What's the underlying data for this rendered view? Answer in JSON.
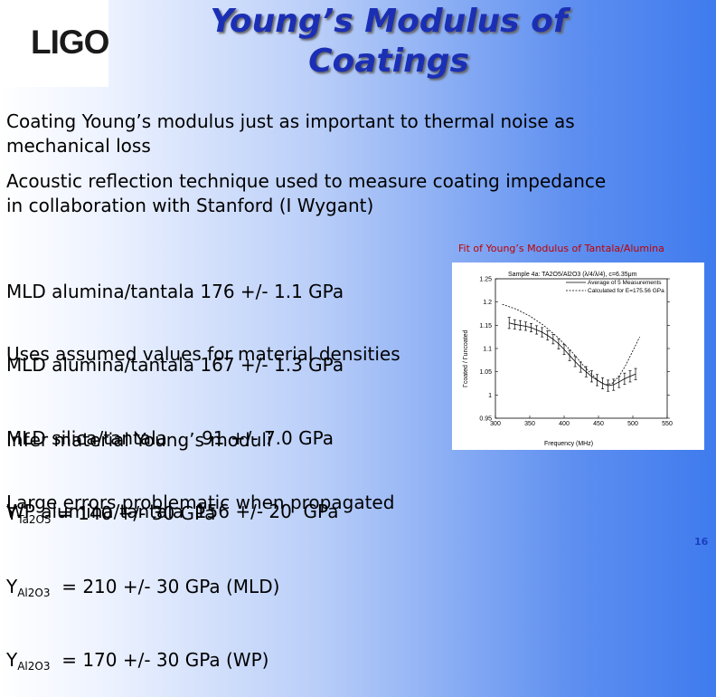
{
  "logo": {
    "text": "LIGO"
  },
  "title": {
    "line1": "Young’s Modulus of",
    "line2": "Coatings"
  },
  "bullets": {
    "b1": "Coating Young’s modulus just as important to thermal noise as\nmechanical loss",
    "b2": "Acoustic reflection technique used to measure coating impedance\nin collaboration with Stanford (I Wygant)"
  },
  "measurements": [
    "MLD alumina/tantala 176 +/- 1.1 GPa",
    "MLD alumina/tantala 167 +/- 1.3 GPa",
    "MLD silica/tantala      91 +/- 7.0 GPa",
    "WP alumina/tantala  156 +/- 20  GPa"
  ],
  "assumed": "Uses assumed values for material densities",
  "infer": {
    "heading": "Infer material Young’s moduli",
    "rows": [
      {
        "sym": "Y",
        "sub": "Ta2O5",
        "val": " = 140 +/- 30 GPa"
      },
      {
        "sym": "Y",
        "sub": "Al2O3",
        "val": "  = 210 +/- 30 GPa (MLD)"
      },
      {
        "sym": "Y",
        "sub": "Al2O3",
        "val": "  = 170 +/- 30 GPa (WP)"
      }
    ]
  },
  "large_errors": "Large errors problematic when propagated",
  "figure": {
    "caption": "Fit of Young’s Modulus of Tantala/Alumina",
    "plot_title": "Sample 4a: TA2O5/Al2O3 (λ/4/λ/4), c=6.35μm",
    "legend_measured": "Average of 5 Measurements",
    "legend_calc": "Calculated for E=175.56 GPa",
    "xlabel": "Frequency (MHz)",
    "ylabel": "Γcoated / Γuncoated"
  },
  "chart_data": {
    "type": "line",
    "title": "Sample 4a: TA2O5/Al2O3 (λ/4/λ/4), c=6.35μm",
    "xlabel": "Frequency (MHz)",
    "ylabel": "Γcoated / Γuncoated",
    "xlim": [
      300,
      550
    ],
    "ylim": [
      0.95,
      1.25
    ],
    "xticks": [
      300,
      350,
      400,
      450,
      500,
      550
    ],
    "yticks": [
      0.95,
      1,
      1.05,
      1.1,
      1.15,
      1.2,
      1.25
    ],
    "legend": "top-right",
    "series": [
      {
        "name": "Average of 5 Measurements",
        "style": "errorbar",
        "x": [
          320,
          328,
          336,
          344,
          352,
          360,
          368,
          376,
          384,
          392,
          400,
          408,
          416,
          424,
          432,
          440,
          448,
          456,
          464,
          472,
          480,
          488,
          496,
          504
        ],
        "y": [
          1.155,
          1.152,
          1.15,
          1.148,
          1.145,
          1.14,
          1.135,
          1.128,
          1.12,
          1.11,
          1.098,
          1.085,
          1.072,
          1.06,
          1.05,
          1.04,
          1.032,
          1.025,
          1.02,
          1.022,
          1.028,
          1.035,
          1.04,
          1.045
        ],
        "err": [
          0.012,
          0.01,
          0.01,
          0.009,
          0.009,
          0.009,
          0.01,
          0.01,
          0.01,
          0.011,
          0.011,
          0.011,
          0.011,
          0.011,
          0.011,
          0.012,
          0.012,
          0.012,
          0.012,
          0.012,
          0.012,
          0.012,
          0.012,
          0.012
        ]
      },
      {
        "name": "Calculated for E=175.56 GPa",
        "style": "dashed",
        "x": [
          310,
          330,
          350,
          370,
          390,
          410,
          430,
          450,
          460,
          470,
          480,
          490,
          500,
          510
        ],
        "y": [
          1.195,
          1.185,
          1.17,
          1.15,
          1.125,
          1.095,
          1.06,
          1.03,
          1.022,
          1.025,
          1.04,
          1.065,
          1.095,
          1.125
        ]
      }
    ]
  },
  "page_number": "16"
}
